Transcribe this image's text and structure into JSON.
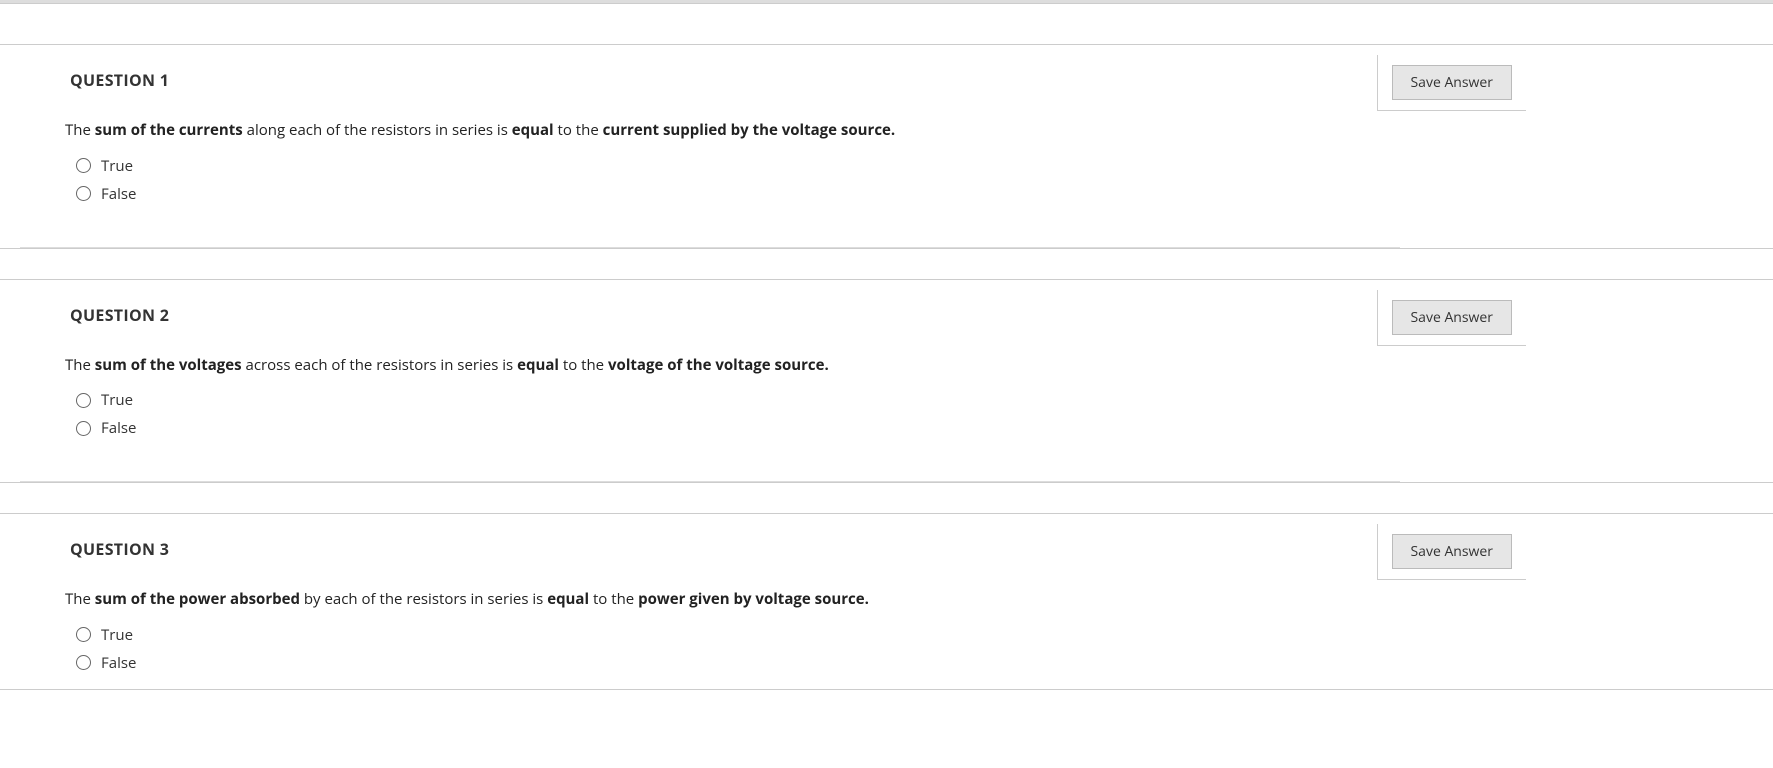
{
  "save_button_label": "Save Answer",
  "questions": [
    {
      "title": "QUESTION 1",
      "text_html": "The <strong>sum of the currents</strong> along each of the resistors in series is <strong>equal</strong> to the <strong>current supplied by the voltage source.</strong>",
      "options": [
        "True",
        "False"
      ]
    },
    {
      "title": "QUESTION 2",
      "text_html": "The <strong>sum of the voltages</strong> across each of the resistors in series is <strong>equal</strong> to the <strong>voltage of the voltage source.</strong>",
      "options": [
        "True",
        "False"
      ]
    },
    {
      "title": "QUESTION 3",
      "text_html": "The <strong>sum of the power absorbed</strong> by each of the resistors in series is <strong>equal</strong> to the <strong>power given by voltage source.</strong>",
      "options": [
        "True",
        "False"
      ]
    }
  ]
}
